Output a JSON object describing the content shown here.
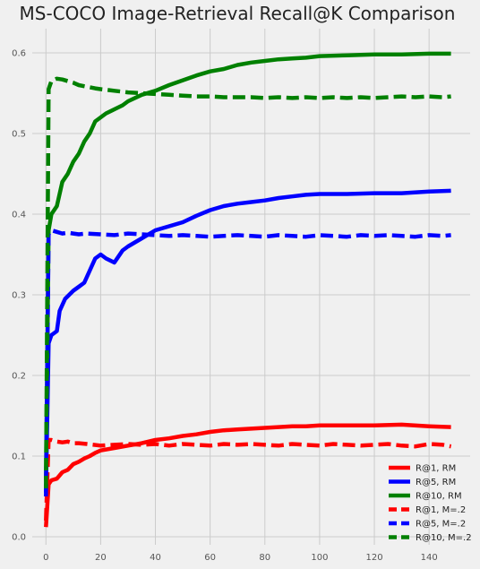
{
  "chart_data": {
    "type": "line",
    "title": "MS-COCO Image-Retrieval Recall@K Comparison",
    "xlabel": "",
    "ylabel": "",
    "xlim": [
      -5,
      155
    ],
    "ylim": [
      -0.01,
      0.63
    ],
    "x_ticks": [
      0,
      20,
      40,
      60,
      80,
      100,
      120,
      140
    ],
    "x_tick_labels": [
      "0",
      "20",
      "40",
      "60",
      "80",
      "100",
      "120",
      "140"
    ],
    "y_ticks": [
      0.0,
      0.1,
      0.2,
      0.3,
      0.4,
      0.5,
      0.6
    ],
    "y_tick_labels": [
      "0.0",
      "0.1",
      "0.2",
      "0.3",
      "0.4",
      "0.5",
      "0.6"
    ],
    "grid": true,
    "legend_position": "bottom-right",
    "colors": {
      "red": "#ff0000",
      "blue": "#0000ff",
      "green": "#008000",
      "grid": "#cbcbcb",
      "background": "#f0f0f0"
    },
    "series": [
      {
        "name": "R@1, RM",
        "color": "#ff0000",
        "style": "solid",
        "points": [
          [
            0,
            0.012
          ],
          [
            1,
            0.065
          ],
          [
            2,
            0.07
          ],
          [
            4,
            0.072
          ],
          [
            6,
            0.08
          ],
          [
            8,
            0.083
          ],
          [
            10,
            0.09
          ],
          [
            12,
            0.093
          ],
          [
            14,
            0.097
          ],
          [
            16,
            0.1
          ],
          [
            18,
            0.104
          ],
          [
            20,
            0.107
          ],
          [
            25,
            0.11
          ],
          [
            30,
            0.113
          ],
          [
            35,
            0.116
          ],
          [
            40,
            0.12
          ],
          [
            45,
            0.122
          ],
          [
            50,
            0.125
          ],
          [
            55,
            0.127
          ],
          [
            60,
            0.13
          ],
          [
            65,
            0.132
          ],
          [
            70,
            0.133
          ],
          [
            75,
            0.134
          ],
          [
            80,
            0.135
          ],
          [
            85,
            0.136
          ],
          [
            90,
            0.137
          ],
          [
            95,
            0.137
          ],
          [
            100,
            0.138
          ],
          [
            110,
            0.138
          ],
          [
            120,
            0.138
          ],
          [
            130,
            0.139
          ],
          [
            140,
            0.137
          ],
          [
            148,
            0.136
          ]
        ]
      },
      {
        "name": "R@5, RM",
        "color": "#0000ff",
        "style": "solid",
        "points": [
          [
            0,
            0.055
          ],
          [
            1,
            0.24
          ],
          [
            2,
            0.25
          ],
          [
            4,
            0.255
          ],
          [
            5,
            0.28
          ],
          [
            7,
            0.295
          ],
          [
            10,
            0.305
          ],
          [
            12,
            0.31
          ],
          [
            14,
            0.315
          ],
          [
            16,
            0.33
          ],
          [
            18,
            0.345
          ],
          [
            20,
            0.35
          ],
          [
            22,
            0.345
          ],
          [
            25,
            0.34
          ],
          [
            28,
            0.355
          ],
          [
            30,
            0.36
          ],
          [
            35,
            0.37
          ],
          [
            40,
            0.38
          ],
          [
            45,
            0.385
          ],
          [
            50,
            0.39
          ],
          [
            55,
            0.398
          ],
          [
            60,
            0.405
          ],
          [
            65,
            0.41
          ],
          [
            70,
            0.413
          ],
          [
            75,
            0.415
          ],
          [
            80,
            0.417
          ],
          [
            85,
            0.42
          ],
          [
            90,
            0.422
          ],
          [
            95,
            0.424
          ],
          [
            100,
            0.425
          ],
          [
            110,
            0.425
          ],
          [
            120,
            0.426
          ],
          [
            130,
            0.426
          ],
          [
            140,
            0.428
          ],
          [
            148,
            0.429
          ]
        ]
      },
      {
        "name": "R@10, RM",
        "color": "#008000",
        "style": "solid",
        "points": [
          [
            0,
            0.07
          ],
          [
            1,
            0.38
          ],
          [
            2,
            0.4
          ],
          [
            4,
            0.41
          ],
          [
            6,
            0.44
          ],
          [
            8,
            0.45
          ],
          [
            10,
            0.465
          ],
          [
            12,
            0.475
          ],
          [
            14,
            0.49
          ],
          [
            16,
            0.5
          ],
          [
            18,
            0.515
          ],
          [
            20,
            0.52
          ],
          [
            22,
            0.525
          ],
          [
            25,
            0.53
          ],
          [
            28,
            0.535
          ],
          [
            30,
            0.54
          ],
          [
            35,
            0.548
          ],
          [
            40,
            0.553
          ],
          [
            45,
            0.56
          ],
          [
            50,
            0.566
          ],
          [
            55,
            0.572
          ],
          [
            60,
            0.577
          ],
          [
            65,
            0.58
          ],
          [
            70,
            0.585
          ],
          [
            75,
            0.588
          ],
          [
            80,
            0.59
          ],
          [
            85,
            0.592
          ],
          [
            90,
            0.593
          ],
          [
            95,
            0.594
          ],
          [
            100,
            0.596
          ],
          [
            110,
            0.597
          ],
          [
            120,
            0.598
          ],
          [
            130,
            0.598
          ],
          [
            140,
            0.599
          ],
          [
            148,
            0.599
          ]
        ]
      },
      {
        "name": "R@1, M=.2",
        "color": "#ff0000",
        "style": "dashed",
        "points": [
          [
            0,
            0.02
          ],
          [
            1,
            0.12
          ],
          [
            2,
            0.12
          ],
          [
            4,
            0.118
          ],
          [
            6,
            0.117
          ],
          [
            8,
            0.118
          ],
          [
            10,
            0.116
          ],
          [
            12,
            0.116
          ],
          [
            15,
            0.115
          ],
          [
            20,
            0.113
          ],
          [
            25,
            0.114
          ],
          [
            30,
            0.115
          ],
          [
            35,
            0.114
          ],
          [
            40,
            0.115
          ],
          [
            45,
            0.113
          ],
          [
            50,
            0.115
          ],
          [
            55,
            0.114
          ],
          [
            60,
            0.113
          ],
          [
            65,
            0.115
          ],
          [
            70,
            0.114
          ],
          [
            75,
            0.115
          ],
          [
            80,
            0.114
          ],
          [
            85,
            0.113
          ],
          [
            90,
            0.115
          ],
          [
            95,
            0.114
          ],
          [
            100,
            0.113
          ],
          [
            105,
            0.115
          ],
          [
            110,
            0.114
          ],
          [
            115,
            0.113
          ],
          [
            120,
            0.114
          ],
          [
            125,
            0.115
          ],
          [
            130,
            0.113
          ],
          [
            135,
            0.112
          ],
          [
            140,
            0.115
          ],
          [
            145,
            0.114
          ],
          [
            148,
            0.112
          ]
        ]
      },
      {
        "name": "R@5, M=.2",
        "color": "#0000ff",
        "style": "dashed",
        "points": [
          [
            0,
            0.05
          ],
          [
            1,
            0.375
          ],
          [
            2,
            0.38
          ],
          [
            4,
            0.378
          ],
          [
            6,
            0.376
          ],
          [
            8,
            0.377
          ],
          [
            10,
            0.376
          ],
          [
            12,
            0.375
          ],
          [
            15,
            0.376
          ],
          [
            20,
            0.375
          ],
          [
            25,
            0.374
          ],
          [
            30,
            0.376
          ],
          [
            35,
            0.375
          ],
          [
            40,
            0.374
          ],
          [
            45,
            0.373
          ],
          [
            50,
            0.374
          ],
          [
            55,
            0.373
          ],
          [
            60,
            0.372
          ],
          [
            65,
            0.373
          ],
          [
            70,
            0.374
          ],
          [
            75,
            0.373
          ],
          [
            80,
            0.372
          ],
          [
            85,
            0.374
          ],
          [
            90,
            0.373
          ],
          [
            95,
            0.372
          ],
          [
            100,
            0.374
          ],
          [
            105,
            0.373
          ],
          [
            110,
            0.372
          ],
          [
            115,
            0.374
          ],
          [
            120,
            0.373
          ],
          [
            125,
            0.374
          ],
          [
            130,
            0.373
          ],
          [
            135,
            0.372
          ],
          [
            140,
            0.374
          ],
          [
            145,
            0.373
          ],
          [
            148,
            0.374
          ]
        ]
      },
      {
        "name": "R@10, M=.2",
        "color": "#008000",
        "style": "dashed",
        "points": [
          [
            0,
            0.06
          ],
          [
            1,
            0.555
          ],
          [
            2,
            0.565
          ],
          [
            4,
            0.568
          ],
          [
            6,
            0.567
          ],
          [
            8,
            0.565
          ],
          [
            10,
            0.563
          ],
          [
            12,
            0.56
          ],
          [
            15,
            0.558
          ],
          [
            18,
            0.556
          ],
          [
            20,
            0.555
          ],
          [
            25,
            0.553
          ],
          [
            30,
            0.551
          ],
          [
            35,
            0.55
          ],
          [
            40,
            0.549
          ],
          [
            45,
            0.548
          ],
          [
            50,
            0.547
          ],
          [
            55,
            0.546
          ],
          [
            60,
            0.546
          ],
          [
            65,
            0.545
          ],
          [
            70,
            0.545
          ],
          [
            75,
            0.545
          ],
          [
            80,
            0.544
          ],
          [
            85,
            0.545
          ],
          [
            90,
            0.544
          ],
          [
            95,
            0.545
          ],
          [
            100,
            0.544
          ],
          [
            105,
            0.545
          ],
          [
            110,
            0.544
          ],
          [
            115,
            0.545
          ],
          [
            120,
            0.544
          ],
          [
            125,
            0.545
          ],
          [
            130,
            0.546
          ],
          [
            135,
            0.545
          ],
          [
            140,
            0.546
          ],
          [
            145,
            0.545
          ],
          [
            148,
            0.546
          ]
        ]
      }
    ]
  }
}
